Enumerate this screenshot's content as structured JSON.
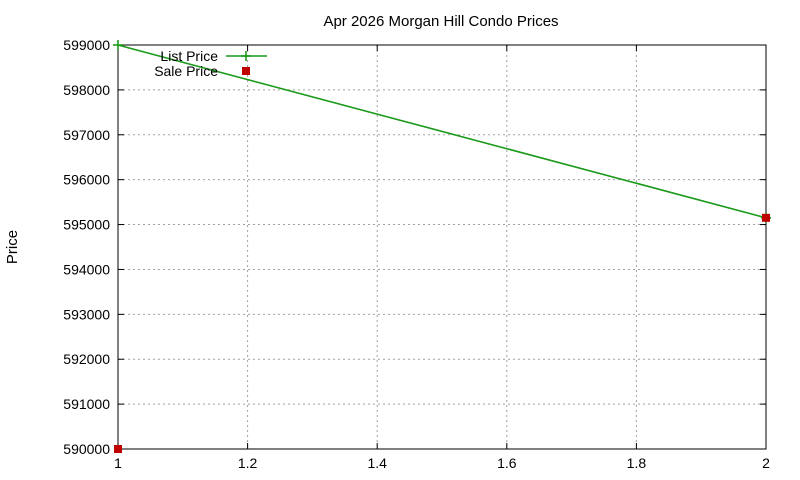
{
  "chart_data": {
    "type": "line",
    "title": "Apr 2026 Morgan Hill Condo Prices",
    "xlabel": "",
    "ylabel": "Price",
    "xlim": [
      1,
      2
    ],
    "ylim": [
      590000,
      599000
    ],
    "x_ticks": [
      "1",
      "1.2",
      "1.4",
      "1.6",
      "1.8",
      "2"
    ],
    "y_ticks": [
      "590000",
      "591000",
      "592000",
      "593000",
      "594000",
      "595000",
      "596000",
      "597000",
      "598000",
      "599000"
    ],
    "grid": true,
    "legend_position": "top-left",
    "series": [
      {
        "name": "List Price",
        "style": "line-with-plus",
        "color": "#1a9a1a",
        "x": [
          1,
          2
        ],
        "y": [
          599000,
          595150
        ]
      },
      {
        "name": "Sale Price",
        "style": "square-points",
        "color": "#c00000",
        "x": [
          1,
          2
        ],
        "y": [
          590000,
          595150
        ]
      }
    ]
  }
}
